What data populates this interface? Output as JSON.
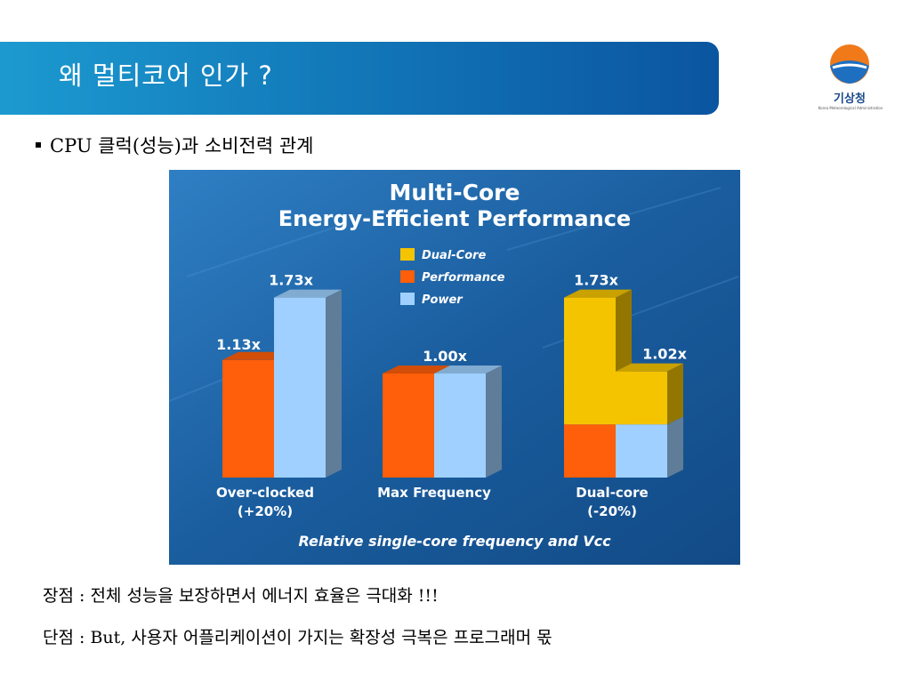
{
  "slide": {
    "title": "왜 멀티코어 인가 ?",
    "bullet": "CPU 클럭(성능)과 소비전력 관계",
    "note_advantage": "장점 : 전체 성능을 보장하면서 에너지 효율은 극대화 !!!",
    "note_disadvantage": "단점 : But, 사용자 어플리케이션이 가지는 확장성 극복은 프로그래머 몫"
  },
  "logo": {
    "name": "기상청",
    "subtitle": "Korea Meteorological Administration",
    "icon": "kma-logo-icon"
  },
  "colors": {
    "title_bar": "#1173b5",
    "chart_bg": "#1a5d9e",
    "dual_core": "#f5c400",
    "performance": "#ff5e0a",
    "power": "#9fd0ff"
  },
  "chart_data": {
    "type": "bar",
    "title": "Multi-Core",
    "subtitle": "Energy-Efficient Performance",
    "legend": [
      "Dual-Core",
      "Performance",
      "Power"
    ],
    "legend_position": "top-center",
    "categories": [
      {
        "line1": "Over-clocked",
        "line2": "(+20%)"
      },
      {
        "line1": "Max Frequency",
        "line2": ""
      },
      {
        "line1": "Dual-core",
        "line2": "(-20%)"
      }
    ],
    "series": [
      {
        "name": "Performance",
        "values": [
          1.13,
          1.0,
          0.51
        ]
      },
      {
        "name": "Power",
        "values": [
          1.73,
          1.0,
          0.51
        ]
      },
      {
        "name": "Dual-Core",
        "values": [
          null,
          null,
          1.22
        ]
      }
    ],
    "labels": [
      "1.13x",
      "1.73x",
      "1.00x",
      "1.73x",
      "1.02x"
    ],
    "footer": "Relative single-core frequency and Vcc",
    "grid": false
  }
}
